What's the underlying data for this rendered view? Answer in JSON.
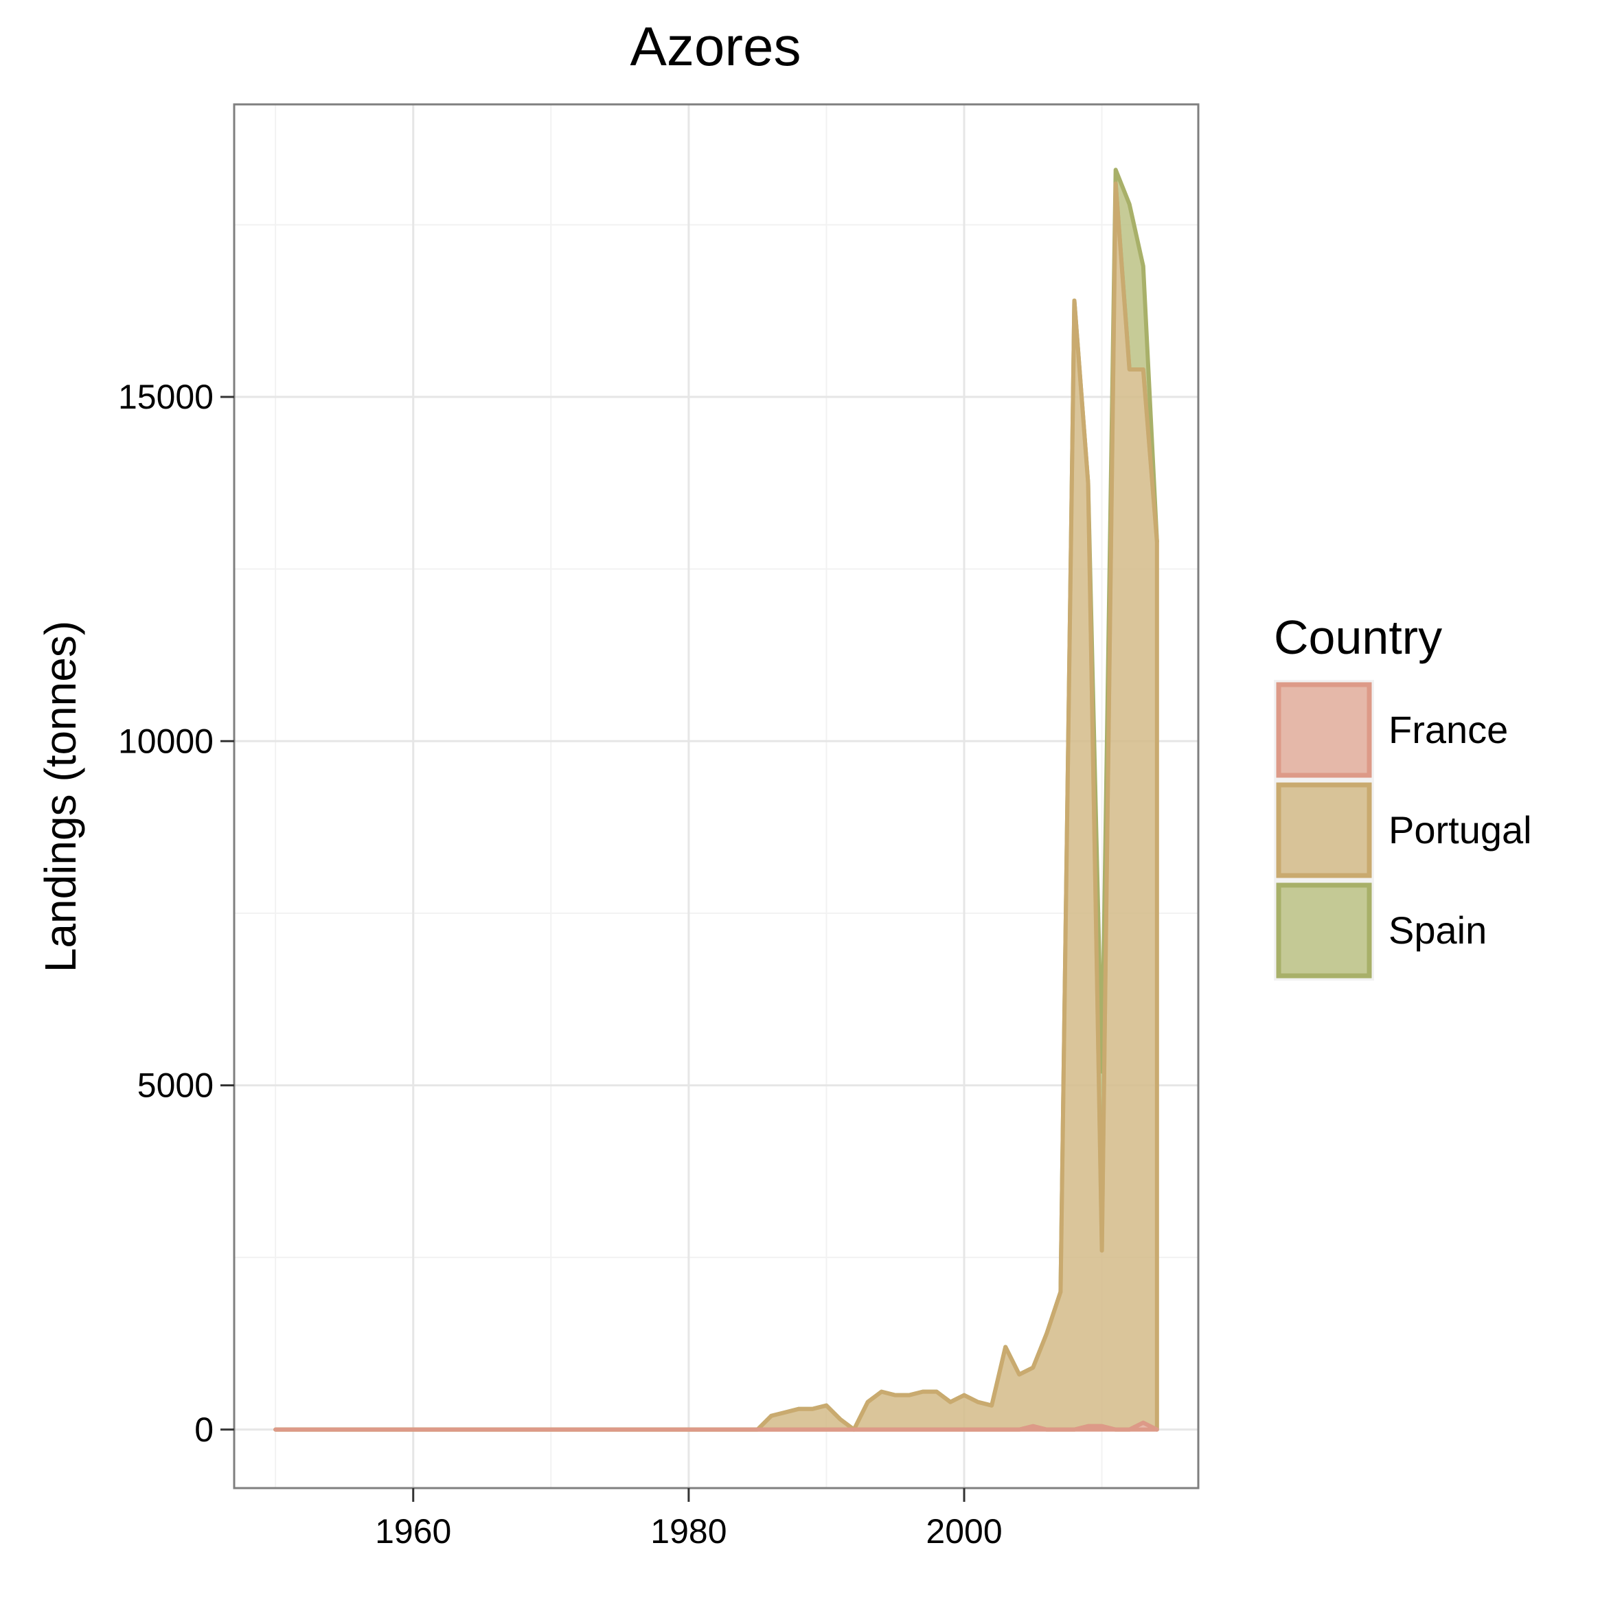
{
  "chart_data": {
    "type": "area",
    "stacked": true,
    "title": "Azores",
    "xlabel": "",
    "ylabel": "Landings (tonnes)",
    "xlim": [
      1947,
      2017
    ],
    "ylim": [
      -850,
      19250
    ],
    "x_ticks": [
      1960,
      1980,
      2000
    ],
    "y_ticks": [
      0,
      5000,
      10000,
      15000
    ],
    "y_minor_ticks": [
      2500,
      7500,
      12500,
      17500
    ],
    "x_minor_ticks": [
      1950,
      1970,
      1990,
      2010
    ],
    "grid": true,
    "legend_title": "Country",
    "legend_position": "right",
    "x": [
      1950,
      1951,
      1952,
      1953,
      1954,
      1955,
      1956,
      1957,
      1958,
      1959,
      1960,
      1961,
      1962,
      1963,
      1964,
      1965,
      1966,
      1967,
      1968,
      1969,
      1970,
      1971,
      1972,
      1973,
      1974,
      1975,
      1976,
      1977,
      1978,
      1979,
      1980,
      1981,
      1982,
      1983,
      1984,
      1985,
      1986,
      1987,
      1988,
      1989,
      1990,
      1991,
      1992,
      1993,
      1994,
      1995,
      1996,
      1997,
      1998,
      1999,
      2000,
      2001,
      2002,
      2003,
      2004,
      2005,
      2006,
      2007,
      2008,
      2009,
      2010,
      2011,
      2012,
      2013,
      2014
    ],
    "series": [
      {
        "name": "France",
        "color": "#e3ae9c",
        "line": "#dd9a88",
        "values": [
          0,
          0,
          0,
          0,
          0,
          0,
          0,
          0,
          0,
          0,
          0,
          0,
          0,
          0,
          0,
          0,
          0,
          0,
          0,
          0,
          0,
          0,
          0,
          0,
          0,
          0,
          0,
          0,
          0,
          0,
          0,
          0,
          0,
          0,
          0,
          0,
          0,
          0,
          0,
          0,
          0,
          0,
          0,
          0,
          0,
          0,
          0,
          0,
          0,
          0,
          0,
          0,
          0,
          0,
          0,
          50,
          0,
          0,
          0,
          50,
          50,
          0,
          0,
          100,
          0
        ]
      },
      {
        "name": "Portugal",
        "color": "#d4bb88",
        "line": "#c9aa6f",
        "values": [
          0,
          0,
          0,
          0,
          0,
          0,
          0,
          0,
          0,
          0,
          0,
          0,
          0,
          0,
          0,
          0,
          0,
          0,
          0,
          0,
          0,
          0,
          0,
          0,
          0,
          0,
          0,
          0,
          0,
          0,
          0,
          0,
          0,
          0,
          0,
          0,
          200,
          250,
          300,
          300,
          350,
          150,
          0,
          400,
          550,
          500,
          500,
          550,
          550,
          400,
          500,
          400,
          350,
          1200,
          800,
          850,
          1400,
          2000,
          16400,
          13700,
          2550,
          18100,
          15400,
          15300,
          12900
        ]
      },
      {
        "name": "Spain",
        "color": "#bcc285",
        "line": "#a8b069",
        "values": [
          0,
          0,
          0,
          0,
          0,
          0,
          0,
          0,
          0,
          0,
          0,
          0,
          0,
          0,
          0,
          0,
          0,
          0,
          0,
          0,
          0,
          0,
          0,
          0,
          0,
          0,
          0,
          0,
          0,
          0,
          0,
          0,
          0,
          0,
          0,
          0,
          0,
          0,
          0,
          0,
          0,
          0,
          0,
          0,
          0,
          0,
          0,
          0,
          0,
          0,
          0,
          0,
          0,
          0,
          0,
          0,
          0,
          0,
          0,
          0,
          2600,
          200,
          2400,
          1500,
          0
        ]
      }
    ]
  }
}
